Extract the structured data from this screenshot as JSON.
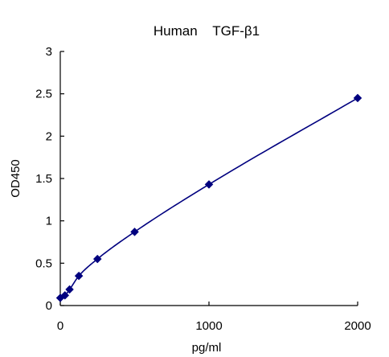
{
  "chart_data": {
    "type": "scatter",
    "title": "Human    TGF-β1",
    "xlabel": "pg/ml",
    "ylabel": "OD450",
    "xlim": [
      0,
      2000
    ],
    "ylim": [
      0,
      3
    ],
    "x_ticks": [
      {
        "value": 0,
        "label": "0"
      },
      {
        "value": 1000,
        "label": "1000"
      },
      {
        "value": 2000,
        "label": "2000"
      }
    ],
    "y_ticks": [
      {
        "value": 0,
        "label": "0"
      },
      {
        "value": 0.5,
        "label": "0.5"
      },
      {
        "value": 1,
        "label": "1"
      },
      {
        "value": 1.5,
        "label": "1.5"
      },
      {
        "value": 2,
        "label": "2"
      },
      {
        "value": 2.5,
        "label": "2.5"
      },
      {
        "value": 3,
        "label": "3"
      }
    ],
    "series": [
      {
        "x": [
          0,
          31.25,
          62.5,
          125,
          250,
          500,
          1000,
          2000
        ],
        "y": [
          0.09,
          0.12,
          0.19,
          0.35,
          0.55,
          0.87,
          1.43,
          2.45
        ],
        "marker": "diamond",
        "color": "#00007F",
        "fit_line": true
      }
    ],
    "grid": false,
    "legend": "none"
  }
}
